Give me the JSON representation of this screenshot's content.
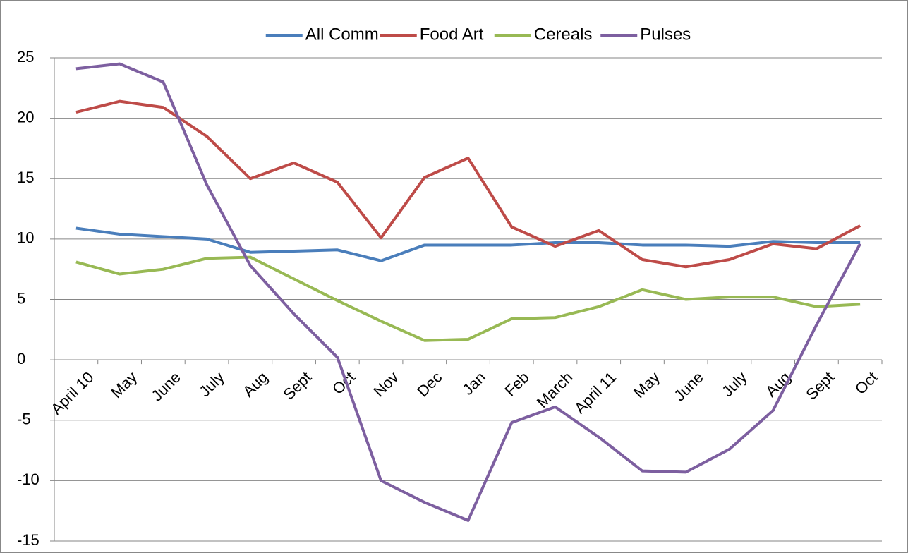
{
  "chart_data": {
    "type": "line",
    "categories": [
      "April 10",
      "May",
      "June",
      "July",
      "Aug",
      "Sept",
      "Oct",
      "Nov",
      "Dec",
      "Jan",
      "Feb",
      "March",
      "April 11",
      "May",
      "June",
      "July",
      "Aug",
      "Sept",
      "Oct"
    ],
    "series": [
      {
        "name": "All Comm",
        "color": "#4a7ebb",
        "values": [
          10.9,
          10.4,
          10.2,
          10.0,
          8.9,
          9.0,
          9.1,
          8.2,
          9.5,
          9.5,
          9.5,
          9.7,
          9.7,
          9.5,
          9.5,
          9.4,
          9.8,
          9.7,
          9.7
        ]
      },
      {
        "name": "Food Art",
        "color": "#be4b48",
        "values": [
          20.5,
          21.4,
          20.9,
          18.5,
          15.0,
          16.3,
          14.7,
          10.1,
          15.1,
          16.7,
          11.0,
          9.4,
          10.7,
          8.3,
          7.7,
          8.3,
          9.6,
          9.2,
          11.1
        ]
      },
      {
        "name": "Cereals",
        "color": "#98b954",
        "values": [
          8.1,
          7.1,
          7.5,
          8.4,
          8.5,
          6.7,
          4.9,
          3.2,
          1.6,
          1.7,
          3.4,
          3.5,
          4.4,
          5.8,
          5.0,
          5.2,
          5.2,
          4.4,
          4.6
        ]
      },
      {
        "name": "Pulses",
        "color": "#7d5fa0",
        "values": [
          24.1,
          24.5,
          23.0,
          14.5,
          7.8,
          3.8,
          0.2,
          -10.0,
          -11.8,
          -13.3,
          -5.2,
          -3.9,
          -6.4,
          -9.2,
          -9.3,
          -7.4,
          -4.2,
          2.9,
          9.6
        ]
      }
    ],
    "ylim": [
      -15,
      25
    ],
    "yticks": [
      -15,
      -10,
      -5,
      0,
      5,
      10,
      15,
      20,
      25
    ],
    "grid": true,
    "legend": "top"
  }
}
